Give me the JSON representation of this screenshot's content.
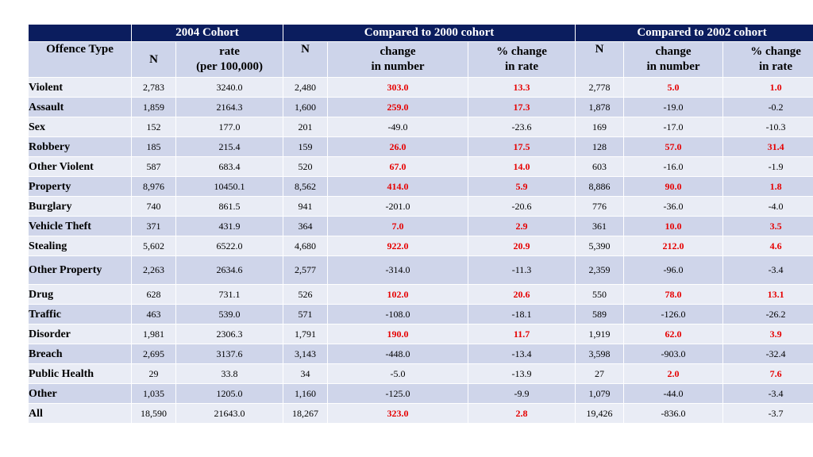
{
  "header": {
    "offence_type": "Offence Type",
    "group_2004": "2004 Cohort",
    "group_2000": "Compared to 2000 cohort",
    "group_2002": "Compared to 2002 cohort",
    "col_n": "N",
    "col_rate_line1": "rate",
    "col_rate_line2": "(per 100,000)",
    "col_change_line1": "change",
    "col_change_line2": "in number",
    "col_pct_line1": "% change",
    "col_pct_line2": "in rate"
  },
  "highlight_color": "#e60000",
  "rows": [
    {
      "label": "Violent",
      "level": "category",
      "n2004": "2,783",
      "rate": "3240.0",
      "n2000": "2,480",
      "ch2000": "303.0",
      "pct2000": "13.3",
      "n2002": "2,778",
      "ch2002": "5.0",
      "pct2002": "1.0",
      "hl2000": true,
      "hl2002": true
    },
    {
      "label": "Assault",
      "level": "sub",
      "n2004": "1,859",
      "rate": "2164.3",
      "n2000": "1,600",
      "ch2000": "259.0",
      "pct2000": "17.3",
      "n2002": "1,878",
      "ch2002": "-19.0",
      "pct2002": "-0.2",
      "hl2000": true,
      "hl2002": false
    },
    {
      "label": "Sex",
      "level": "sub",
      "n2004": "152",
      "rate": "177.0",
      "n2000": "201",
      "ch2000": "-49.0",
      "pct2000": "-23.6",
      "n2002": "169",
      "ch2002": "-17.0",
      "pct2002": "-10.3",
      "hl2000": false,
      "hl2002": false
    },
    {
      "label": "Robbery",
      "level": "sub",
      "n2004": "185",
      "rate": "215.4",
      "n2000": "159",
      "ch2000": "26.0",
      "pct2000": "17.5",
      "n2002": "128",
      "ch2002": "57.0",
      "pct2002": "31.4",
      "hl2000": true,
      "hl2002": true
    },
    {
      "label": "Other Violent",
      "level": "sub",
      "n2004": "587",
      "rate": "683.4",
      "n2000": "520",
      "ch2000": "67.0",
      "pct2000": "14.0",
      "n2002": "603",
      "ch2002": "-16.0",
      "pct2002": "-1.9",
      "hl2000": true,
      "hl2002": false
    },
    {
      "label": "Property",
      "level": "category",
      "n2004": "8,976",
      "rate": "10450.1",
      "n2000": "8,562",
      "ch2000": "414.0",
      "pct2000": "5.9",
      "n2002": "8,886",
      "ch2002": "90.0",
      "pct2002": "1.8",
      "hl2000": true,
      "hl2002": true
    },
    {
      "label": "Burglary",
      "level": "sub",
      "n2004": "740",
      "rate": "861.5",
      "n2000": "941",
      "ch2000": "-201.0",
      "pct2000": "-20.6",
      "n2002": "776",
      "ch2002": "-36.0",
      "pct2002": "-4.0",
      "hl2000": false,
      "hl2002": false
    },
    {
      "label": "Vehicle Theft",
      "level": "sub",
      "n2004": "371",
      "rate": "431.9",
      "n2000": "364",
      "ch2000": "7.0",
      "pct2000": "2.9",
      "n2002": "361",
      "ch2002": "10.0",
      "pct2002": "3.5",
      "hl2000": true,
      "hl2002": true
    },
    {
      "label": "Stealing",
      "level": "sub",
      "n2004": "5,602",
      "rate": "6522.0",
      "n2000": "4,680",
      "ch2000": "922.0",
      "pct2000": "20.9",
      "n2002": "5,390",
      "ch2002": "212.0",
      "pct2002": "4.6",
      "hl2000": true,
      "hl2002": true
    },
    {
      "label": "Other Property",
      "level": "sub",
      "n2004": "2,263",
      "rate": "2634.6",
      "n2000": "2,577",
      "ch2000": "-314.0",
      "pct2000": "-11.3",
      "n2002": "2,359",
      "ch2002": "-96.0",
      "pct2002": "-3.4",
      "hl2000": false,
      "hl2002": false
    },
    {
      "label": "Drug",
      "level": "category",
      "n2004": "628",
      "rate": "731.1",
      "n2000": "526",
      "ch2000": "102.0",
      "pct2000": "20.6",
      "n2002": "550",
      "ch2002": "78.0",
      "pct2002": "13.1",
      "hl2000": true,
      "hl2002": true
    },
    {
      "label": "Traffic",
      "level": "category",
      "n2004": "463",
      "rate": "539.0",
      "n2000": "571",
      "ch2000": "-108.0",
      "pct2000": "-18.1",
      "n2002": "589",
      "ch2002": "-126.0",
      "pct2002": "-26.2",
      "hl2000": false,
      "hl2002": false
    },
    {
      "label": "Disorder",
      "level": "category",
      "n2004": "1,981",
      "rate": "2306.3",
      "n2000": "1,791",
      "ch2000": "190.0",
      "pct2000": "11.7",
      "n2002": "1,919",
      "ch2002": "62.0",
      "pct2002": "3.9",
      "hl2000": true,
      "hl2002": true
    },
    {
      "label": "Breach",
      "level": "category",
      "n2004": "2,695",
      "rate": "3137.6",
      "n2000": "3,143",
      "ch2000": "-448.0",
      "pct2000": "-13.4",
      "n2002": "3,598",
      "ch2002": "-903.0",
      "pct2002": "-32.4",
      "hl2000": false,
      "hl2002": false
    },
    {
      "label": "Public Health",
      "level": "category",
      "n2004": "29",
      "rate": "33.8",
      "n2000": "34",
      "ch2000": "-5.0",
      "pct2000": "-13.9",
      "n2002": "27",
      "ch2002": "2.0",
      "pct2002": "7.6",
      "hl2000": false,
      "hl2002": true
    },
    {
      "label": "Other",
      "level": "category",
      "n2004": "1,035",
      "rate": "1205.0",
      "n2000": "1,160",
      "ch2000": "-125.0",
      "pct2000": "-9.9",
      "n2002": "1,079",
      "ch2002": "-44.0",
      "pct2002": "-3.4",
      "hl2000": false,
      "hl2002": false
    },
    {
      "label": "All",
      "level": "category",
      "n2004": "18,590",
      "rate": "21643.0",
      "n2000": "18,267",
      "ch2000": "323.0",
      "pct2000": "2.8",
      "n2002": "19,426",
      "ch2002": "-836.0",
      "pct2002": "-3.7",
      "hl2000": true,
      "hl2002": false
    }
  ]
}
